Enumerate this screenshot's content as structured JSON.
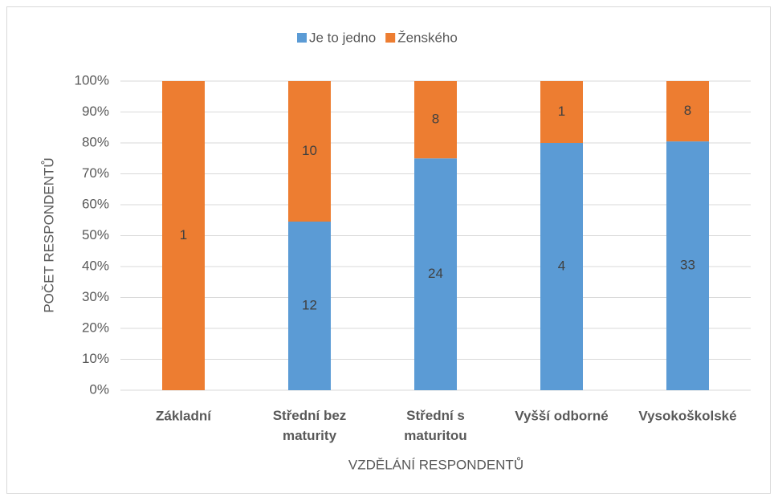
{
  "chart_data": {
    "type": "bar",
    "stacking": "percent",
    "categories": [
      "Základní",
      "Střední bez maturity",
      "Střední s maturitou",
      "Vyšší odborné",
      "Vysokoškolské"
    ],
    "series": [
      {
        "name": "Je to jedno",
        "color": "#5b9bd5",
        "values": [
          0,
          12,
          24,
          4,
          33
        ]
      },
      {
        "name": "Ženského",
        "color": "#ed7d31",
        "values": [
          1,
          10,
          8,
          1,
          8
        ]
      }
    ],
    "ylim": [
      0,
      100
    ],
    "yticks": [
      {
        "value": 0,
        "label": "0%"
      },
      {
        "value": 10,
        "label": "10%"
      },
      {
        "value": 20,
        "label": "20%"
      },
      {
        "value": 30,
        "label": "30%"
      },
      {
        "value": 40,
        "label": "40%"
      },
      {
        "value": 50,
        "label": "50%"
      },
      {
        "value": 60,
        "label": "60%"
      },
      {
        "value": 70,
        "label": "70%"
      },
      {
        "value": 80,
        "label": "80%"
      },
      {
        "value": 90,
        "label": "90%"
      },
      {
        "value": 100,
        "label": "100%"
      }
    ],
    "y_label": "POČET RESPONDENTŮ",
    "x_label": "VZDĚLÁNÍ RESPONDENTŮ",
    "grid": true,
    "legend": "top"
  }
}
